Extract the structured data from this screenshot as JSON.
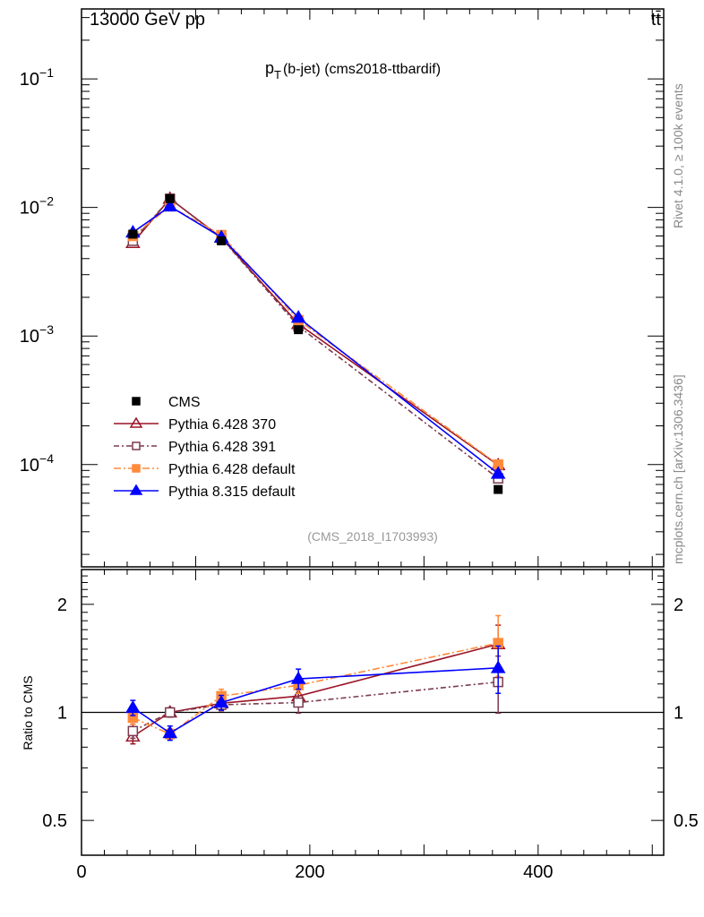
{
  "chart_data": {
    "type": "line",
    "header_left": "13000 GeV pp",
    "header_right": "tt̄",
    "title_main": "p",
    "title_sub": "T",
    "title_rest": "(b-jet) (cms2018-ttbardif)",
    "analysis_label": "(CMS_2018_I1703993)",
    "side_label_top": "Rivet 4.1.0, ≥ 100k events",
    "side_label_bottom": "mcplots.cern.ch [arXiv:1306.3436]",
    "ratio_ylabel": "Ratio to CMS",
    "xlim": [
      0,
      510
    ],
    "ylim": [
      1.6e-05,
      0.35
    ],
    "yscale": "log",
    "ratio_ylim": [
      0.4,
      2.5
    ],
    "x_ticks": [
      {
        "v": 0,
        "label": "0"
      },
      {
        "v": 200,
        "label": "200"
      },
      {
        "v": 400,
        "label": "400"
      }
    ],
    "y_ticks": [
      {
        "exp": -1,
        "label": "10",
        "sup": "−1"
      },
      {
        "exp": -2,
        "label": "10",
        "sup": "−2"
      },
      {
        "exp": -3,
        "label": "10",
        "sup": "−3"
      },
      {
        "exp": -4,
        "label": "10",
        "sup": "−4"
      }
    ],
    "ratio_ticks": [
      {
        "v": 0.5,
        "label": "0.5"
      },
      {
        "v": 1,
        "label": "1"
      },
      {
        "v": 2,
        "label": "2"
      }
    ],
    "x": [
      45,
      77.5,
      122.5,
      190,
      365
    ],
    "data": {
      "name": "CMS",
      "values": [
        0.0062,
        0.0117,
        0.0055,
        0.00112,
        6.4e-05
      ],
      "color": "#000000"
    },
    "series": [
      {
        "name": "Pythia 6.428 370",
        "color": "#9b1427",
        "marker": "triangle-open",
        "dash": "",
        "values": [
          0.0053,
          0.0117,
          0.00583,
          0.00124,
          9.9e-05
        ],
        "ratio": [
          0.857,
          1.0,
          1.06,
          1.11,
          1.55
        ],
        "ratio_err": [
          0.04,
          0.03,
          0.04,
          0.06,
          0.2
        ]
      },
      {
        "name": "Pythia 6.428 391",
        "color": "#7b3a4e",
        "marker": "square-open",
        "dash": "6,3,2,3",
        "values": [
          0.0055,
          0.0117,
          0.00578,
          0.00119,
          7.8e-05
        ],
        "ratio": [
          0.887,
          1.0,
          1.05,
          1.065,
          1.215
        ],
        "ratio_err": [
          0.04,
          0.03,
          0.04,
          0.07,
          0.22
        ]
      },
      {
        "name": "Pythia 6.428 default",
        "color": "#ff8a3a",
        "marker": "square-filled",
        "dash": "8,3,2,3",
        "values": [
          0.006,
          0.0102,
          0.0061,
          0.00133,
          0.0001
        ],
        "ratio": [
          0.966,
          0.87,
          1.11,
          1.19,
          1.56
        ],
        "ratio_err": [
          0.04,
          0.03,
          0.05,
          0.06,
          0.3
        ]
      },
      {
        "name": "Pythia 8.315 default",
        "color": "#0000ff",
        "marker": "triangle-filled",
        "dash": "",
        "values": [
          0.0064,
          0.0102,
          0.00586,
          0.00139,
          8.5e-05
        ],
        "ratio": [
          1.03,
          0.876,
          1.065,
          1.24,
          1.33
        ],
        "ratio_err": [
          0.05,
          0.04,
          0.05,
          0.08,
          0.2
        ]
      }
    ]
  }
}
